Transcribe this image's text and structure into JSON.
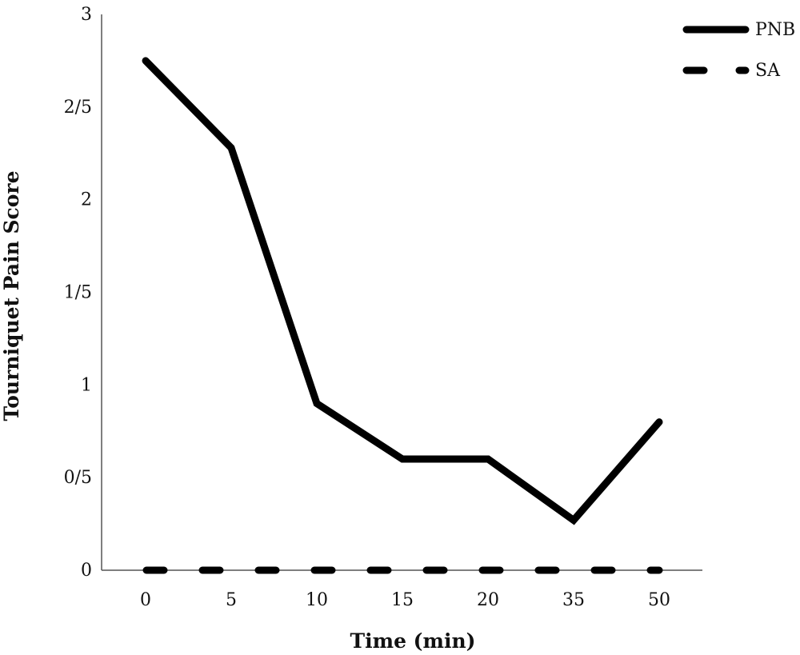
{
  "chart_data": {
    "type": "line",
    "title": "",
    "xlabel": "Time (min)",
    "ylabel": "Tourniquet Pain Score",
    "categories": [
      "0",
      "5",
      "10",
      "15",
      "20",
      "35",
      "50"
    ],
    "y_ticks": [
      "0",
      "0/5",
      "1",
      "1/5",
      "2",
      "2/5",
      "3"
    ],
    "ylim": [
      0,
      3
    ],
    "grid": false,
    "legend": "top-right",
    "series": [
      {
        "name": "PNB",
        "style": "solid",
        "color": "#000000",
        "values": [
          2.75,
          2.28,
          0.9,
          0.6,
          0.6,
          0.27,
          0.8
        ]
      },
      {
        "name": "SA",
        "style": "dashed",
        "color": "#000000",
        "values": [
          0,
          0,
          0,
          0,
          0,
          0,
          0
        ]
      }
    ]
  }
}
